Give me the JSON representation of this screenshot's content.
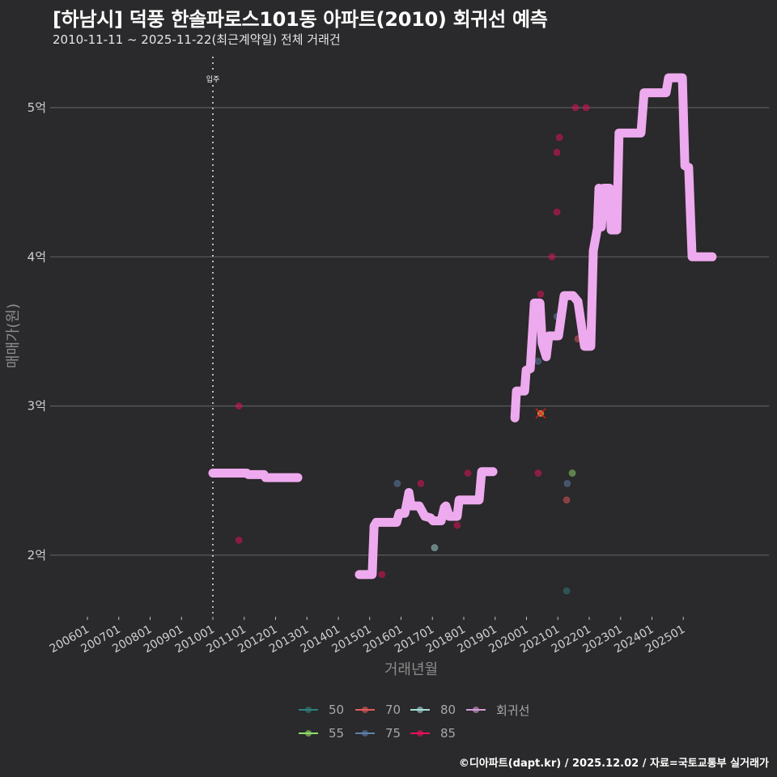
{
  "title": "[하남시] 덕풍 한솔파로스101동 아파트(2010) 회귀선 예측",
  "subtitle": "2010-11-11 ~ 2025-11-22(최근계약일) 전체 거래건",
  "footer": "©디아파트(dapt.kr) / 2025.12.02 / 자료=국토교통부 실거래가",
  "chart_data": {
    "type": "scatter",
    "title": "[하남시] 덕풍 한솔파로스101동 아파트(2010) 회귀선 예측",
    "subtitle": "2010-11-11 ~ 2025-11-22(최근계약일) 전체 거래건",
    "xlabel": "거래년월",
    "ylabel": "매매가(원)",
    "xlim": [
      2004.8,
      2027.7
    ],
    "ylim": [
      16000,
      53400
    ],
    "grid": {
      "y": true,
      "x": false
    },
    "legend_position": "bottom",
    "x_ticks": [
      {
        "label": "200601",
        "t": 2006
      },
      {
        "label": "200701",
        "t": 2007
      },
      {
        "label": "200801",
        "t": 2008
      },
      {
        "label": "200901",
        "t": 2009
      },
      {
        "label": "201001",
        "t": 2010
      },
      {
        "label": "201101",
        "t": 2011
      },
      {
        "label": "201201",
        "t": 2012
      },
      {
        "label": "201301",
        "t": 2013
      },
      {
        "label": "201401",
        "t": 2014
      },
      {
        "label": "201501",
        "t": 2015
      },
      {
        "label": "201601",
        "t": 2016
      },
      {
        "label": "201701",
        "t": 2017
      },
      {
        "label": "201801",
        "t": 2018
      },
      {
        "label": "201901",
        "t": 2019
      },
      {
        "label": "202001",
        "t": 2020
      },
      {
        "label": "202101",
        "t": 2021
      },
      {
        "label": "202201",
        "t": 2022
      },
      {
        "label": "202301",
        "t": 2023
      },
      {
        "label": "202401",
        "t": 2024
      },
      {
        "label": "202501",
        "t": 2025
      }
    ],
    "y_ticks": [
      {
        "label": "2억",
        "value": 20000
      },
      {
        "label": "3억",
        "value": 30000
      },
      {
        "label": "4억",
        "value": 40000
      },
      {
        "label": "5억",
        "value": 50000
      }
    ],
    "annotations": [
      {
        "label": "입주",
        "t": 2010.0,
        "style": "dotted-vline"
      }
    ],
    "legend": [
      {
        "label": "50",
        "color": "#2e7f7a"
      },
      {
        "label": "70",
        "color": "#e55a5a"
      },
      {
        "label": "80",
        "color": "#a5dcd8"
      },
      {
        "label": "회귀선",
        "color": "#d49ad9"
      },
      {
        "label": "55",
        "color": "#8fdc6a"
      },
      {
        "label": "75",
        "color": "#5f7fae"
      },
      {
        "label": "85",
        "color": "#e8125a"
      }
    ],
    "series": [
      {
        "name": "50",
        "color": "#2e7f7a",
        "points": [
          [
            2021.28,
            17600
          ]
        ]
      },
      {
        "name": "55",
        "color": "#8fdc6a",
        "points": [
          [
            2021.46,
            25500
          ]
        ]
      },
      {
        "name": "70",
        "color": "#e55a5a",
        "points": [
          [
            2021.28,
            23700
          ],
          [
            2021.64,
            34500
          ]
        ]
      },
      {
        "name": "75",
        "color": "#5f7fae",
        "points": [
          [
            2015.88,
            24800
          ],
          [
            2020.37,
            33000
          ],
          [
            2020.97,
            36000
          ],
          [
            2021.3,
            24800
          ]
        ]
      },
      {
        "name": "80",
        "color": "#a5dcd8",
        "points": [
          [
            2017.07,
            20500
          ]
        ]
      },
      {
        "name": "85",
        "color": "#e8125a",
        "points": [
          [
            2010.83,
            30000
          ],
          [
            2010.83,
            21000
          ],
          [
            2015.39,
            18700
          ],
          [
            2016.63,
            24800
          ],
          [
            2017.79,
            22000
          ],
          [
            2018.13,
            25500
          ],
          [
            2020.37,
            25500
          ],
          [
            2020.45,
            37500
          ],
          [
            2020.81,
            40000
          ],
          [
            2020.97,
            43000
          ],
          [
            2020.97,
            47000
          ],
          [
            2021.05,
            48000
          ],
          [
            2021.56,
            50000
          ],
          [
            2021.9,
            50000
          ]
        ]
      }
    ],
    "highlight_point": {
      "t": 2020.45,
      "price": 29500,
      "fill": "#e0a040",
      "cross": "#e02020"
    },
    "regression": {
      "name": "회귀선",
      "color": "#eeaaee",
      "segments": [
        [
          [
            2010.0,
            25500
          ],
          [
            2011.08,
            25500
          ],
          [
            2011.13,
            25400
          ],
          [
            2011.63,
            25400
          ],
          [
            2011.68,
            25200
          ],
          [
            2012.71,
            25200
          ]
        ],
        [
          [
            2014.67,
            18700
          ],
          [
            2015.08,
            18700
          ],
          [
            2015.14,
            21950
          ],
          [
            2015.21,
            22200
          ],
          [
            2015.86,
            22200
          ],
          [
            2015.94,
            22800
          ],
          [
            2016.12,
            22800
          ],
          [
            2016.25,
            24200
          ],
          [
            2016.32,
            23300
          ],
          [
            2016.58,
            23300
          ],
          [
            2016.76,
            22600
          ],
          [
            2016.94,
            22500
          ],
          [
            2017.02,
            22300
          ],
          [
            2017.28,
            22300
          ],
          [
            2017.38,
            23200
          ],
          [
            2017.43,
            23300
          ],
          [
            2017.54,
            22600
          ],
          [
            2017.79,
            22600
          ],
          [
            2017.85,
            23700
          ],
          [
            2018.49,
            23700
          ],
          [
            2018.57,
            25600
          ],
          [
            2018.93,
            25600
          ]
        ],
        [
          [
            2019.63,
            29200
          ],
          [
            2019.68,
            31000
          ],
          [
            2019.94,
            31000
          ],
          [
            2019.99,
            32400
          ],
          [
            2020.12,
            32500
          ],
          [
            2020.25,
            36900
          ],
          [
            2020.43,
            36900
          ],
          [
            2020.5,
            34200
          ],
          [
            2020.63,
            33300
          ],
          [
            2020.71,
            34700
          ],
          [
            2021.02,
            34700
          ],
          [
            2021.2,
            37400
          ],
          [
            2021.48,
            37400
          ],
          [
            2021.64,
            37000
          ],
          [
            2021.85,
            34000
          ],
          [
            2022.05,
            34000
          ],
          [
            2022.13,
            40400
          ],
          [
            2022.26,
            41900
          ],
          [
            2022.31,
            44600
          ],
          [
            2022.39,
            42000
          ],
          [
            2022.46,
            44600
          ],
          [
            2022.65,
            44600
          ],
          [
            2022.7,
            41800
          ],
          [
            2022.88,
            41800
          ],
          [
            2022.95,
            48300
          ],
          [
            2023.65,
            48300
          ],
          [
            2023.75,
            51000
          ],
          [
            2024.45,
            51000
          ],
          [
            2024.53,
            52000
          ],
          [
            2024.97,
            52000
          ],
          [
            2025.05,
            46100
          ],
          [
            2025.17,
            46000
          ],
          [
            2025.28,
            40000
          ],
          [
            2025.92,
            40000
          ]
        ]
      ]
    }
  }
}
